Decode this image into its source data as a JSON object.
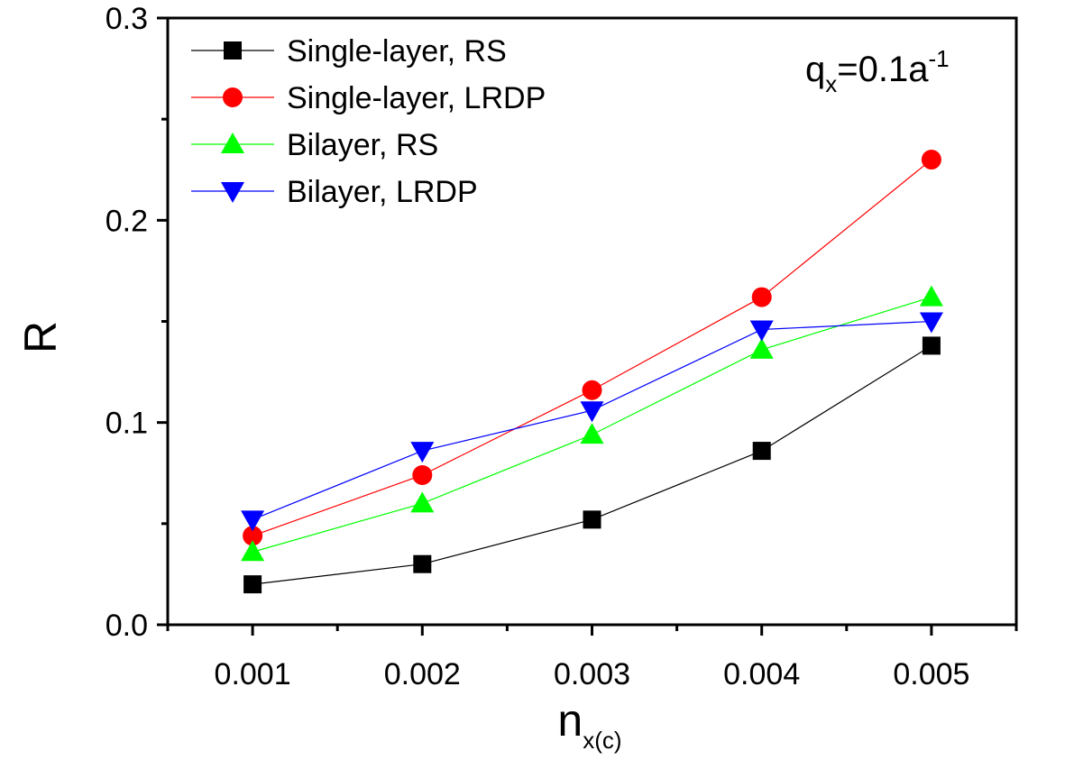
{
  "chart_data": {
    "type": "line",
    "title": "",
    "xlabel": "n",
    "xlabel_subscript": "x(c)",
    "ylabel": "R",
    "x": [
      0.001,
      0.002,
      0.003,
      0.004,
      0.005
    ],
    "x_tick_labels": [
      "0.001",
      "0.002",
      "0.003",
      "0.004",
      "0.005"
    ],
    "y_ticks": [
      0.0,
      0.1,
      0.2,
      0.3
    ],
    "y_tick_labels": [
      "0.0",
      "0.1",
      "0.2",
      "0.3"
    ],
    "xlim": [
      0.0005,
      0.0055
    ],
    "ylim": [
      0.0,
      0.3
    ],
    "grid": false,
    "legend_position": "top-left",
    "annotation": {
      "base": "q",
      "subscript": "x",
      "middle": "=0.1a",
      "superscript": "-1"
    },
    "series": [
      {
        "name": "Single-layer, RS",
        "marker": "square",
        "color": "#000000",
        "values": [
          0.02,
          0.03,
          0.052,
          0.086,
          0.138
        ]
      },
      {
        "name": "Single-layer, LRDP",
        "marker": "circle",
        "color": "#ff0000",
        "values": [
          0.044,
          0.074,
          0.116,
          0.162,
          0.23
        ]
      },
      {
        "name": "Bilayer, RS",
        "marker": "triangle-up",
        "color": "#00ff00",
        "values": [
          0.036,
          0.06,
          0.094,
          0.136,
          0.162
        ]
      },
      {
        "name": "Bilayer, LRDP",
        "marker": "triangle-down",
        "color": "#0000ff",
        "values": [
          0.052,
          0.086,
          0.106,
          0.146,
          0.15
        ]
      }
    ]
  }
}
